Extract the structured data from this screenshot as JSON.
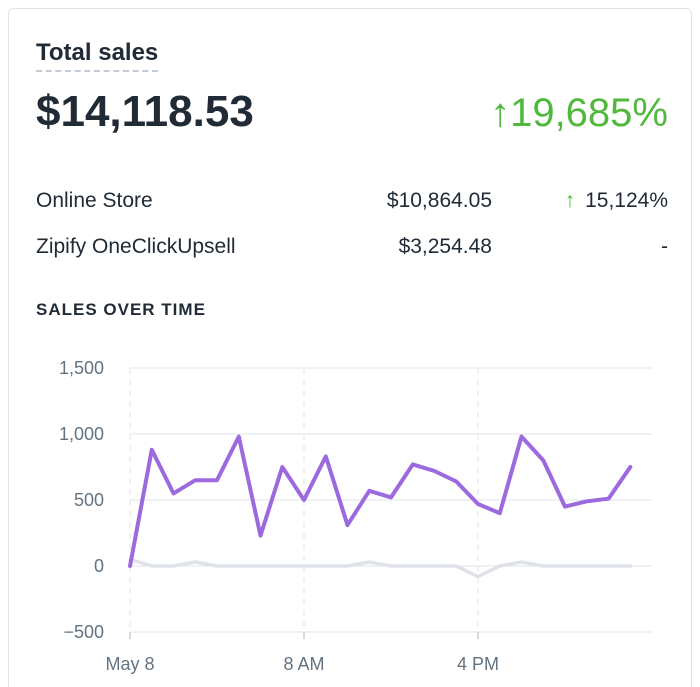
{
  "card": {
    "title": "Total sales",
    "total": "$14,118.53",
    "change_arrow": "↑",
    "change": "19,685%",
    "change_color": "#50b83c"
  },
  "breakdown": [
    {
      "name": "Online Store",
      "value": "$10,864.05",
      "arrow": "↑",
      "change": "15,124%"
    },
    {
      "name": "Zipify OneClickUpsell",
      "value": "$3,254.48",
      "arrow": "",
      "change": "-"
    }
  ],
  "section_title": "SALES OVER TIME",
  "chart_data": {
    "type": "line",
    "title": "",
    "xlabel": "",
    "ylabel": "",
    "ylim": [
      -500,
      1500
    ],
    "yticks": [
      -500,
      0,
      500,
      1000,
      1500
    ],
    "ytick_labels": [
      "−500",
      "0",
      "500",
      "1,000",
      "1,500"
    ],
    "x": [
      0,
      1,
      2,
      3,
      4,
      5,
      6,
      7,
      8,
      9,
      10,
      11,
      12,
      13,
      14,
      15,
      16,
      17,
      18,
      19,
      20,
      21,
      22,
      23,
      24
    ],
    "xlim": [
      0,
      24
    ],
    "xticks": [
      0,
      8,
      16
    ],
    "xtick_labels": [
      "May 8",
      "8 AM",
      "4 PM"
    ],
    "grid": true,
    "series": [
      {
        "color": "#9c6ade",
        "values": [
          0,
          880,
          550,
          650,
          650,
          980,
          230,
          750,
          500,
          830,
          310,
          570,
          520,
          770,
          720,
          640,
          470,
          400,
          980,
          800,
          450,
          490,
          510,
          750,
          null
        ]
      },
      {
        "color": "#dfe3e8",
        "values": [
          50,
          0,
          0,
          30,
          0,
          0,
          0,
          0,
          0,
          0,
          0,
          30,
          0,
          0,
          0,
          0,
          -80,
          0,
          30,
          0,
          0,
          0,
          0,
          0,
          null
        ]
      }
    ]
  }
}
